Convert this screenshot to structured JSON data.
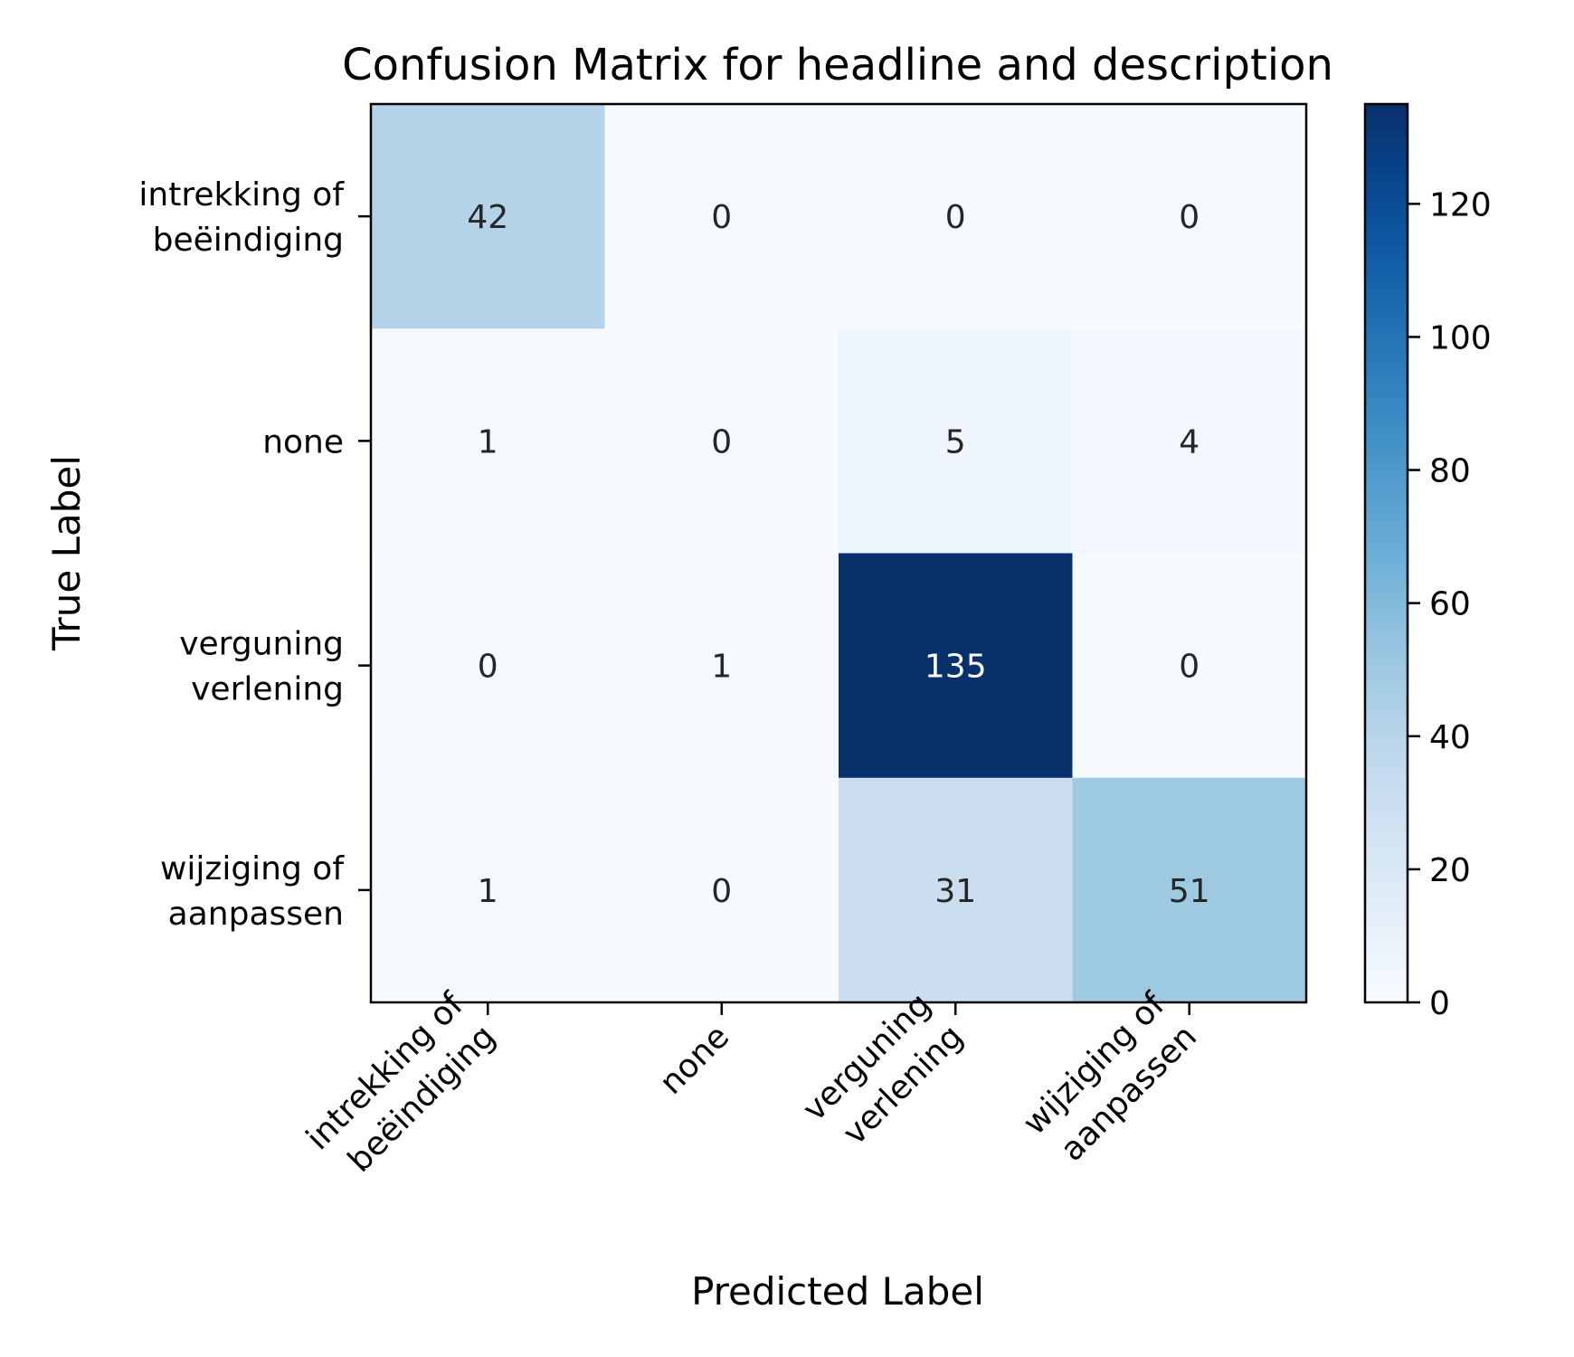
{
  "chart_data": {
    "type": "heatmap",
    "title": "Confusion Matrix for headline and description",
    "xlabel": "Predicted Label",
    "ylabel": "True Label",
    "x_categories": [
      [
        "intrekking of",
        "beëindiging"
      ],
      [
        "none"
      ],
      [
        "verguning",
        "verlening"
      ],
      [
        "wijziging of",
        "aanpassen"
      ]
    ],
    "y_categories": [
      [
        "intrekking of",
        "beëindiging"
      ],
      [
        "none"
      ],
      [
        "verguning",
        "verlening"
      ],
      [
        "wijziging of",
        "aanpassen"
      ]
    ],
    "matrix": [
      [
        42,
        0,
        0,
        0
      ],
      [
        1,
        0,
        5,
        4
      ],
      [
        0,
        1,
        135,
        0
      ],
      [
        1,
        0,
        31,
        51
      ]
    ],
    "colormap": "Blues",
    "colorbar": {
      "range": [
        0,
        135
      ],
      "ticks": [
        0,
        20,
        40,
        60,
        80,
        100,
        120
      ]
    },
    "colors": {
      "scale_low": "#f7fbff",
      "scale_high": "#08306b",
      "text_dark": "#262626",
      "text_light": "#ffffff"
    }
  }
}
